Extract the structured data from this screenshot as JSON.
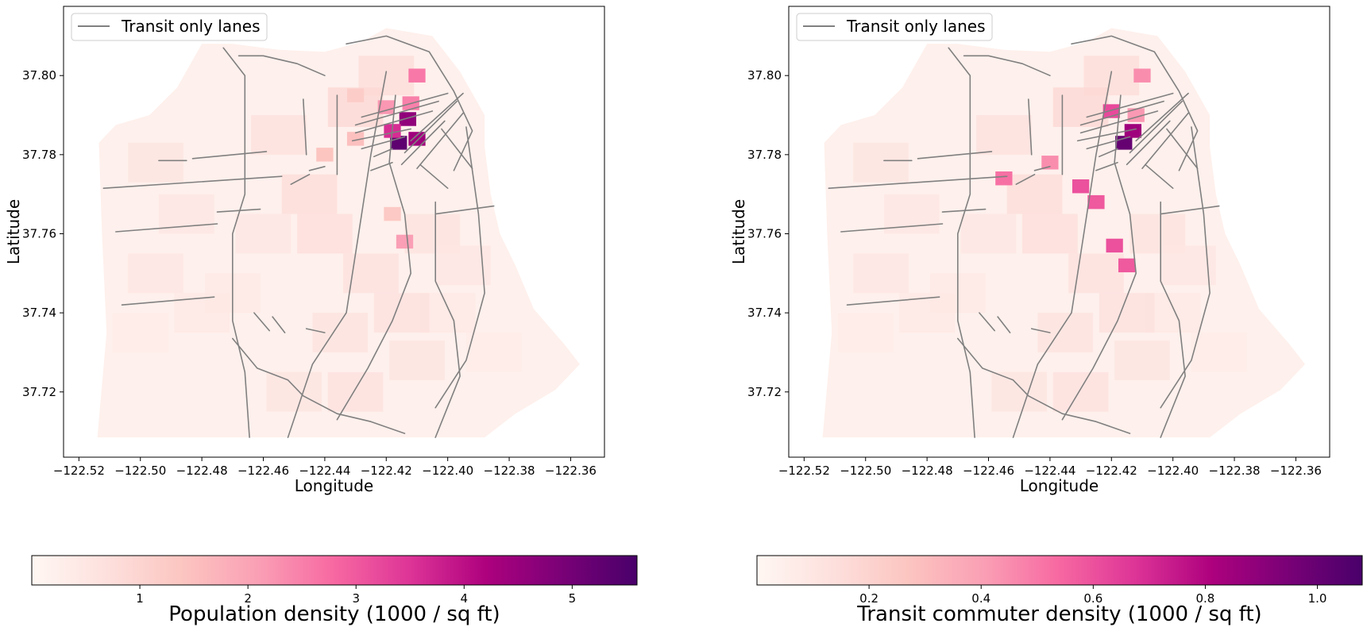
{
  "chart_data": [
    {
      "type": "choropleth-map",
      "xlabel": "Longitude",
      "ylabel": "Latitude",
      "xlim": [
        -122.525,
        -122.349
      ],
      "ylim": [
        37.7035,
        37.8175
      ],
      "xticks": [
        -122.52,
        -122.5,
        -122.48,
        -122.46,
        -122.44,
        -122.42,
        -122.4,
        -122.38,
        -122.36
      ],
      "xtick_labels": [
        "−122.52",
        "−122.50",
        "−122.48",
        "−122.46",
        "−122.44",
        "−122.42",
        "−122.40",
        "−122.38",
        "−122.36"
      ],
      "yticks": [
        37.72,
        37.74,
        37.76,
        37.78,
        37.8
      ],
      "ytick_labels": [
        "37.72",
        "37.74",
        "37.76",
        "37.78",
        "37.80"
      ],
      "legend": {
        "entries": [
          "Transit only lanes"
        ],
        "placement": "upper-left",
        "line_color": "#808080"
      },
      "colorbar": {
        "label": "Population density (1000 / sq ft)",
        "colormap": "RdPu",
        "range": [
          0.0,
          5.6
        ],
        "ticks": [
          1,
          2,
          3,
          4,
          5
        ],
        "tick_labels": [
          "1",
          "2",
          "3",
          "4",
          "5"
        ]
      },
      "hotspots": [
        {
          "lon": -122.416,
          "lat": 37.783,
          "value": 5.3
        },
        {
          "lon": -122.413,
          "lat": 37.789,
          "value": 4.6
        },
        {
          "lon": -122.41,
          "lat": 37.784,
          "value": 4.4
        },
        {
          "lon": -122.418,
          "lat": 37.786,
          "value": 3.6
        },
        {
          "lon": -122.41,
          "lat": 37.8,
          "value": 2.6
        },
        {
          "lon": -122.412,
          "lat": 37.793,
          "value": 2.5
        },
        {
          "lon": -122.42,
          "lat": 37.792,
          "value": 2.2
        },
        {
          "lon": -122.414,
          "lat": 37.758,
          "value": 2.1
        },
        {
          "lon": -122.43,
          "lat": 37.784,
          "value": 1.5
        },
        {
          "lon": -122.44,
          "lat": 37.78,
          "value": 1.4
        },
        {
          "lon": -122.418,
          "lat": 37.765,
          "value": 1.3
        },
        {
          "lon": -122.43,
          "lat": 37.795,
          "value": 1.2
        }
      ]
    },
    {
      "type": "choropleth-map",
      "xlabel": "Longitude",
      "ylabel": "Latitude",
      "xlim": [
        -122.525,
        -122.349
      ],
      "ylim": [
        37.7035,
        37.8175
      ],
      "xticks": [
        -122.52,
        -122.5,
        -122.48,
        -122.46,
        -122.44,
        -122.42,
        -122.4,
        -122.38,
        -122.36
      ],
      "xtick_labels": [
        "−122.52",
        "−122.50",
        "−122.48",
        "−122.46",
        "−122.44",
        "−122.42",
        "−122.40",
        "−122.38",
        "−122.36"
      ],
      "yticks": [
        37.72,
        37.74,
        37.76,
        37.78,
        37.8
      ],
      "ytick_labels": [
        "37.72",
        "37.74",
        "37.76",
        "37.78",
        "37.80"
      ],
      "legend": {
        "entries": [
          "Transit only lanes"
        ],
        "placement": "upper-left",
        "line_color": "#808080"
      },
      "colorbar": {
        "label": "Transit commuter density (1000 / sq ft)",
        "colormap": "RdPu",
        "range": [
          0.0,
          1.08
        ],
        "ticks": [
          0.2,
          0.4,
          0.6,
          0.8,
          1.0
        ],
        "tick_labels": [
          "0.2",
          "0.4",
          "0.6",
          "0.8",
          "1.0"
        ]
      },
      "hotspots": [
        {
          "lon": -122.416,
          "lat": 37.783,
          "value": 1.0
        },
        {
          "lon": -122.413,
          "lat": 37.786,
          "value": 0.85
        },
        {
          "lon": -122.42,
          "lat": 37.791,
          "value": 0.62
        },
        {
          "lon": -122.43,
          "lat": 37.772,
          "value": 0.6
        },
        {
          "lon": -122.425,
          "lat": 37.768,
          "value": 0.58
        },
        {
          "lon": -122.419,
          "lat": 37.757,
          "value": 0.6
        },
        {
          "lon": -122.415,
          "lat": 37.752,
          "value": 0.58
        },
        {
          "lon": -122.455,
          "lat": 37.774,
          "value": 0.52
        },
        {
          "lon": -122.41,
          "lat": 37.8,
          "value": 0.45
        },
        {
          "lon": -122.44,
          "lat": 37.778,
          "value": 0.45
        },
        {
          "lon": -122.412,
          "lat": 37.79,
          "value": 0.42
        }
      ]
    }
  ]
}
